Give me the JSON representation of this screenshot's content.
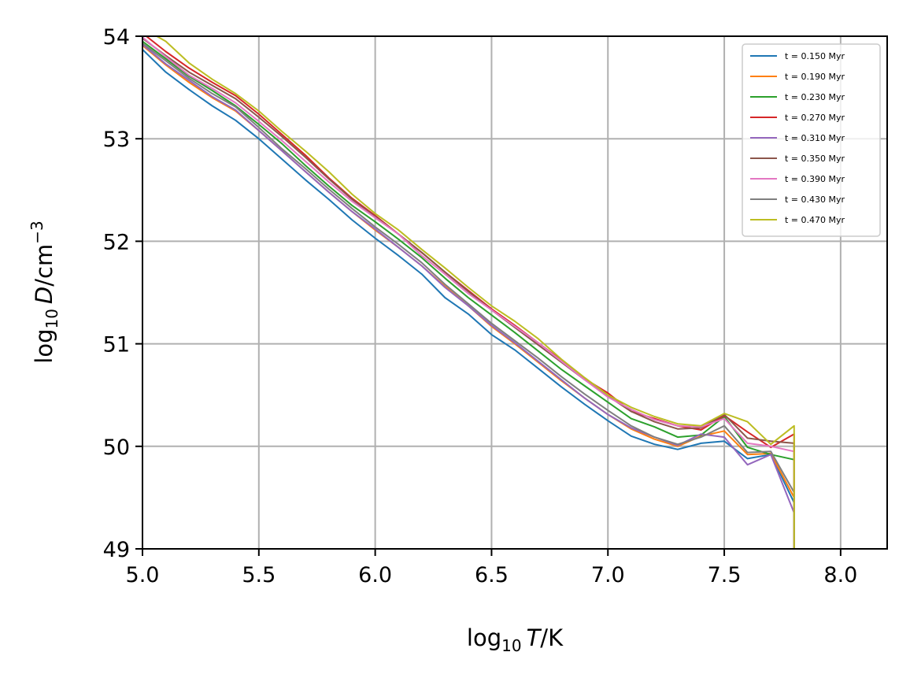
{
  "chart_data": {
    "type": "line",
    "title": "",
    "xlabel": {
      "prefix": "log",
      "sub": "10",
      "var": "T",
      "unit": "/K"
    },
    "ylabel": {
      "prefix": "log",
      "sub": "10",
      "var": "D",
      "unit": "/cm",
      "sup": "−3"
    },
    "xlim": [
      5.0,
      8.2
    ],
    "ylim": [
      49,
      54
    ],
    "xticks": [
      5.0,
      5.5,
      6.0,
      6.5,
      7.0,
      7.5,
      8.0
    ],
    "xtick_labels": [
      "5.0",
      "5.5",
      "6.0",
      "6.5",
      "7.0",
      "7.5",
      "8.0"
    ],
    "yticks": [
      49,
      50,
      51,
      52,
      53,
      54
    ],
    "ytick_labels": [
      "49",
      "50",
      "51",
      "52",
      "53",
      "54"
    ],
    "grid": true,
    "legend_position": "top-right",
    "x": [
      5.0,
      5.1,
      5.2,
      5.3,
      5.4,
      5.5,
      5.6,
      5.7,
      5.8,
      5.9,
      6.0,
      6.1,
      6.2,
      6.3,
      6.4,
      6.5,
      6.6,
      6.7,
      6.8,
      6.9,
      7.0,
      7.1,
      7.2,
      7.3,
      7.4,
      7.5,
      7.6,
      7.7,
      7.8,
      7.8
    ],
    "series": [
      {
        "name": "t = 0.150 Myr",
        "color": "#1f77b4",
        "values": [
          53.87,
          53.65,
          53.48,
          53.32,
          53.18,
          53.0,
          52.8,
          52.6,
          52.41,
          52.21,
          52.03,
          51.86,
          51.68,
          51.45,
          51.29,
          51.09,
          50.94,
          50.76,
          50.58,
          50.41,
          50.25,
          50.1,
          50.02,
          49.97,
          50.03,
          50.05,
          49.88,
          49.92,
          49.45,
          49.0
        ]
      },
      {
        "name": "t = 0.190 Myr",
        "color": "#ff7f0e",
        "values": [
          53.91,
          53.72,
          53.55,
          53.4,
          53.27,
          53.08,
          52.88,
          52.68,
          52.48,
          52.29,
          52.11,
          51.94,
          51.76,
          51.56,
          51.37,
          51.17,
          51.0,
          50.82,
          50.64,
          50.47,
          50.31,
          50.17,
          50.07,
          50.0,
          50.1,
          50.15,
          49.92,
          49.93,
          49.5,
          49.0
        ]
      },
      {
        "name": "t = 0.230 Myr",
        "color": "#2ca02c",
        "values": [
          53.95,
          53.78,
          53.61,
          53.47,
          53.32,
          53.14,
          52.95,
          52.74,
          52.54,
          52.35,
          52.19,
          52.02,
          51.84,
          51.64,
          51.45,
          51.28,
          51.11,
          50.93,
          50.75,
          50.59,
          50.43,
          50.27,
          50.19,
          50.09,
          50.11,
          50.29,
          49.99,
          49.92,
          49.87,
          49.0
        ]
      },
      {
        "name": "t = 0.270 Myr",
        "color": "#d62728",
        "values": [
          54.03,
          53.85,
          53.69,
          53.55,
          53.42,
          53.24,
          53.04,
          52.84,
          52.62,
          52.42,
          52.25,
          52.07,
          51.89,
          51.7,
          51.52,
          51.34,
          51.18,
          51.01,
          50.84,
          50.66,
          50.52,
          50.34,
          50.27,
          50.2,
          50.16,
          50.3,
          50.14,
          49.99,
          50.12,
          49.0
        ]
      },
      {
        "name": "t = 0.310 Myr",
        "color": "#9467bd",
        "values": [
          53.92,
          53.73,
          53.57,
          53.41,
          53.28,
          53.08,
          52.88,
          52.68,
          52.48,
          52.29,
          52.12,
          51.94,
          51.76,
          51.55,
          51.37,
          51.18,
          51.01,
          50.83,
          50.65,
          50.47,
          50.31,
          50.18,
          50.09,
          50.01,
          50.12,
          50.09,
          49.82,
          49.92,
          49.35,
          49.0
        ]
      },
      {
        "name": "t = 0.350 Myr",
        "color": "#8c564b",
        "values": [
          53.98,
          53.81,
          53.65,
          53.52,
          53.39,
          53.21,
          53.02,
          52.82,
          52.61,
          52.41,
          52.24,
          52.07,
          51.89,
          51.7,
          51.51,
          51.33,
          51.16,
          50.99,
          50.82,
          50.65,
          50.49,
          50.34,
          50.24,
          50.17,
          50.18,
          50.31,
          50.08,
          50.05,
          50.03,
          49.0
        ]
      },
      {
        "name": "t = 0.390 Myr",
        "color": "#e377c2",
        "values": [
          53.99,
          53.8,
          53.62,
          53.49,
          53.35,
          53.17,
          52.98,
          52.78,
          52.58,
          52.39,
          52.23,
          52.07,
          51.86,
          51.68,
          51.49,
          51.33,
          51.17,
          51.01,
          50.83,
          50.65,
          50.48,
          50.36,
          50.26,
          50.2,
          50.19,
          50.27,
          50.03,
          50.0,
          49.95,
          49.0
        ]
      },
      {
        "name": "t = 0.430 Myr",
        "color": "#7f7f7f",
        "values": [
          53.93,
          53.76,
          53.59,
          53.44,
          53.31,
          53.11,
          52.9,
          52.71,
          52.51,
          52.32,
          52.14,
          51.97,
          51.79,
          51.58,
          51.39,
          51.2,
          51.03,
          50.86,
          50.68,
          50.51,
          50.35,
          50.2,
          50.09,
          50.02,
          50.09,
          50.2,
          49.94,
          49.95,
          49.55,
          49.0
        ]
      },
      {
        "name": "t = 0.470 Myr",
        "color": "#bcbd22",
        "values": [
          54.08,
          53.95,
          53.74,
          53.58,
          53.44,
          53.27,
          53.07,
          52.88,
          52.68,
          52.46,
          52.27,
          52.11,
          51.92,
          51.74,
          51.55,
          51.37,
          51.22,
          51.05,
          50.85,
          50.67,
          50.5,
          50.38,
          50.29,
          50.22,
          50.2,
          50.32,
          50.24,
          50.02,
          50.2,
          49.0
        ]
      }
    ]
  }
}
